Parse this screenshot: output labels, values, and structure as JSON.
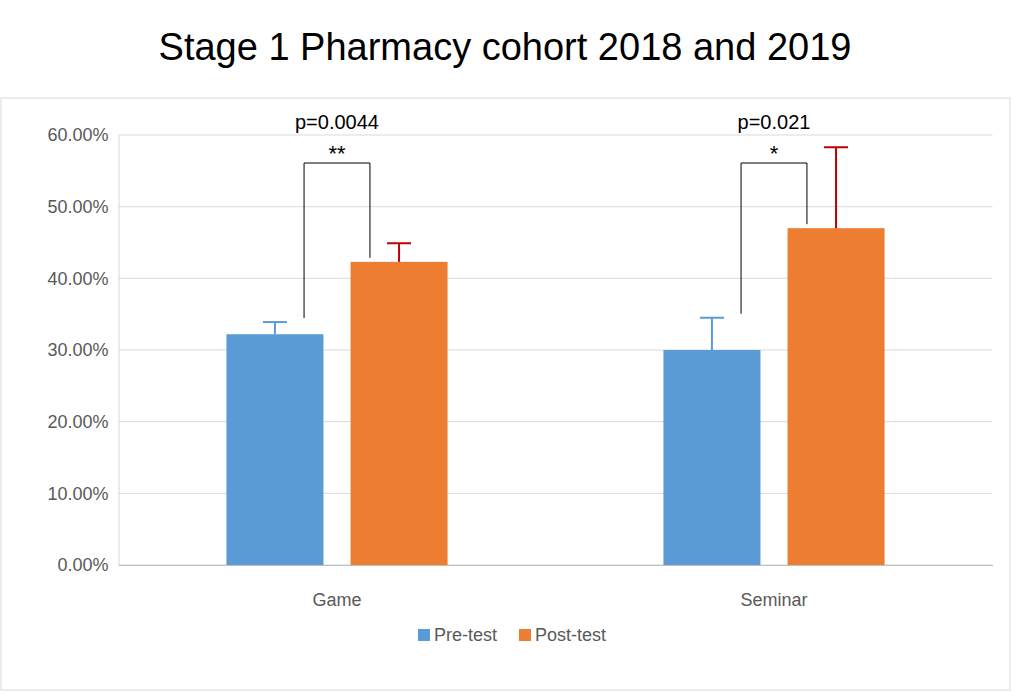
{
  "chart_data": {
    "type": "bar",
    "title": "Stage 1 Pharmacy cohort 2018 and 2019",
    "categories": [
      "Game",
      "Seminar"
    ],
    "series": [
      {
        "name": "Pre-test",
        "color": "#5b9bd5",
        "values": [
          32.2,
          30.0
        ],
        "errors": [
          1.7,
          4.5
        ]
      },
      {
        "name": "Post-test",
        "color": "#ed7d31",
        "values": [
          42.3,
          47.0
        ],
        "errors": [
          2.6,
          11.3
        ]
      }
    ],
    "ylim": [
      0,
      60
    ],
    "yticks": [
      {
        "value": 0,
        "label": "0.00%"
      },
      {
        "value": 10,
        "label": "10.00%"
      },
      {
        "value": 20,
        "label": "20.00%"
      },
      {
        "value": 30,
        "label": "30.00%"
      },
      {
        "value": 40,
        "label": "40.00%"
      },
      {
        "value": 50,
        "label": "50.00%"
      },
      {
        "value": 60,
        "label": "60.00%"
      }
    ],
    "grid": true,
    "legend": "bottom",
    "annotations": [
      {
        "category": "Game",
        "label": "p=0.0044",
        "stars": "**"
      },
      {
        "category": "Seminar",
        "label": "p=0.021",
        "stars": "*"
      }
    ]
  }
}
